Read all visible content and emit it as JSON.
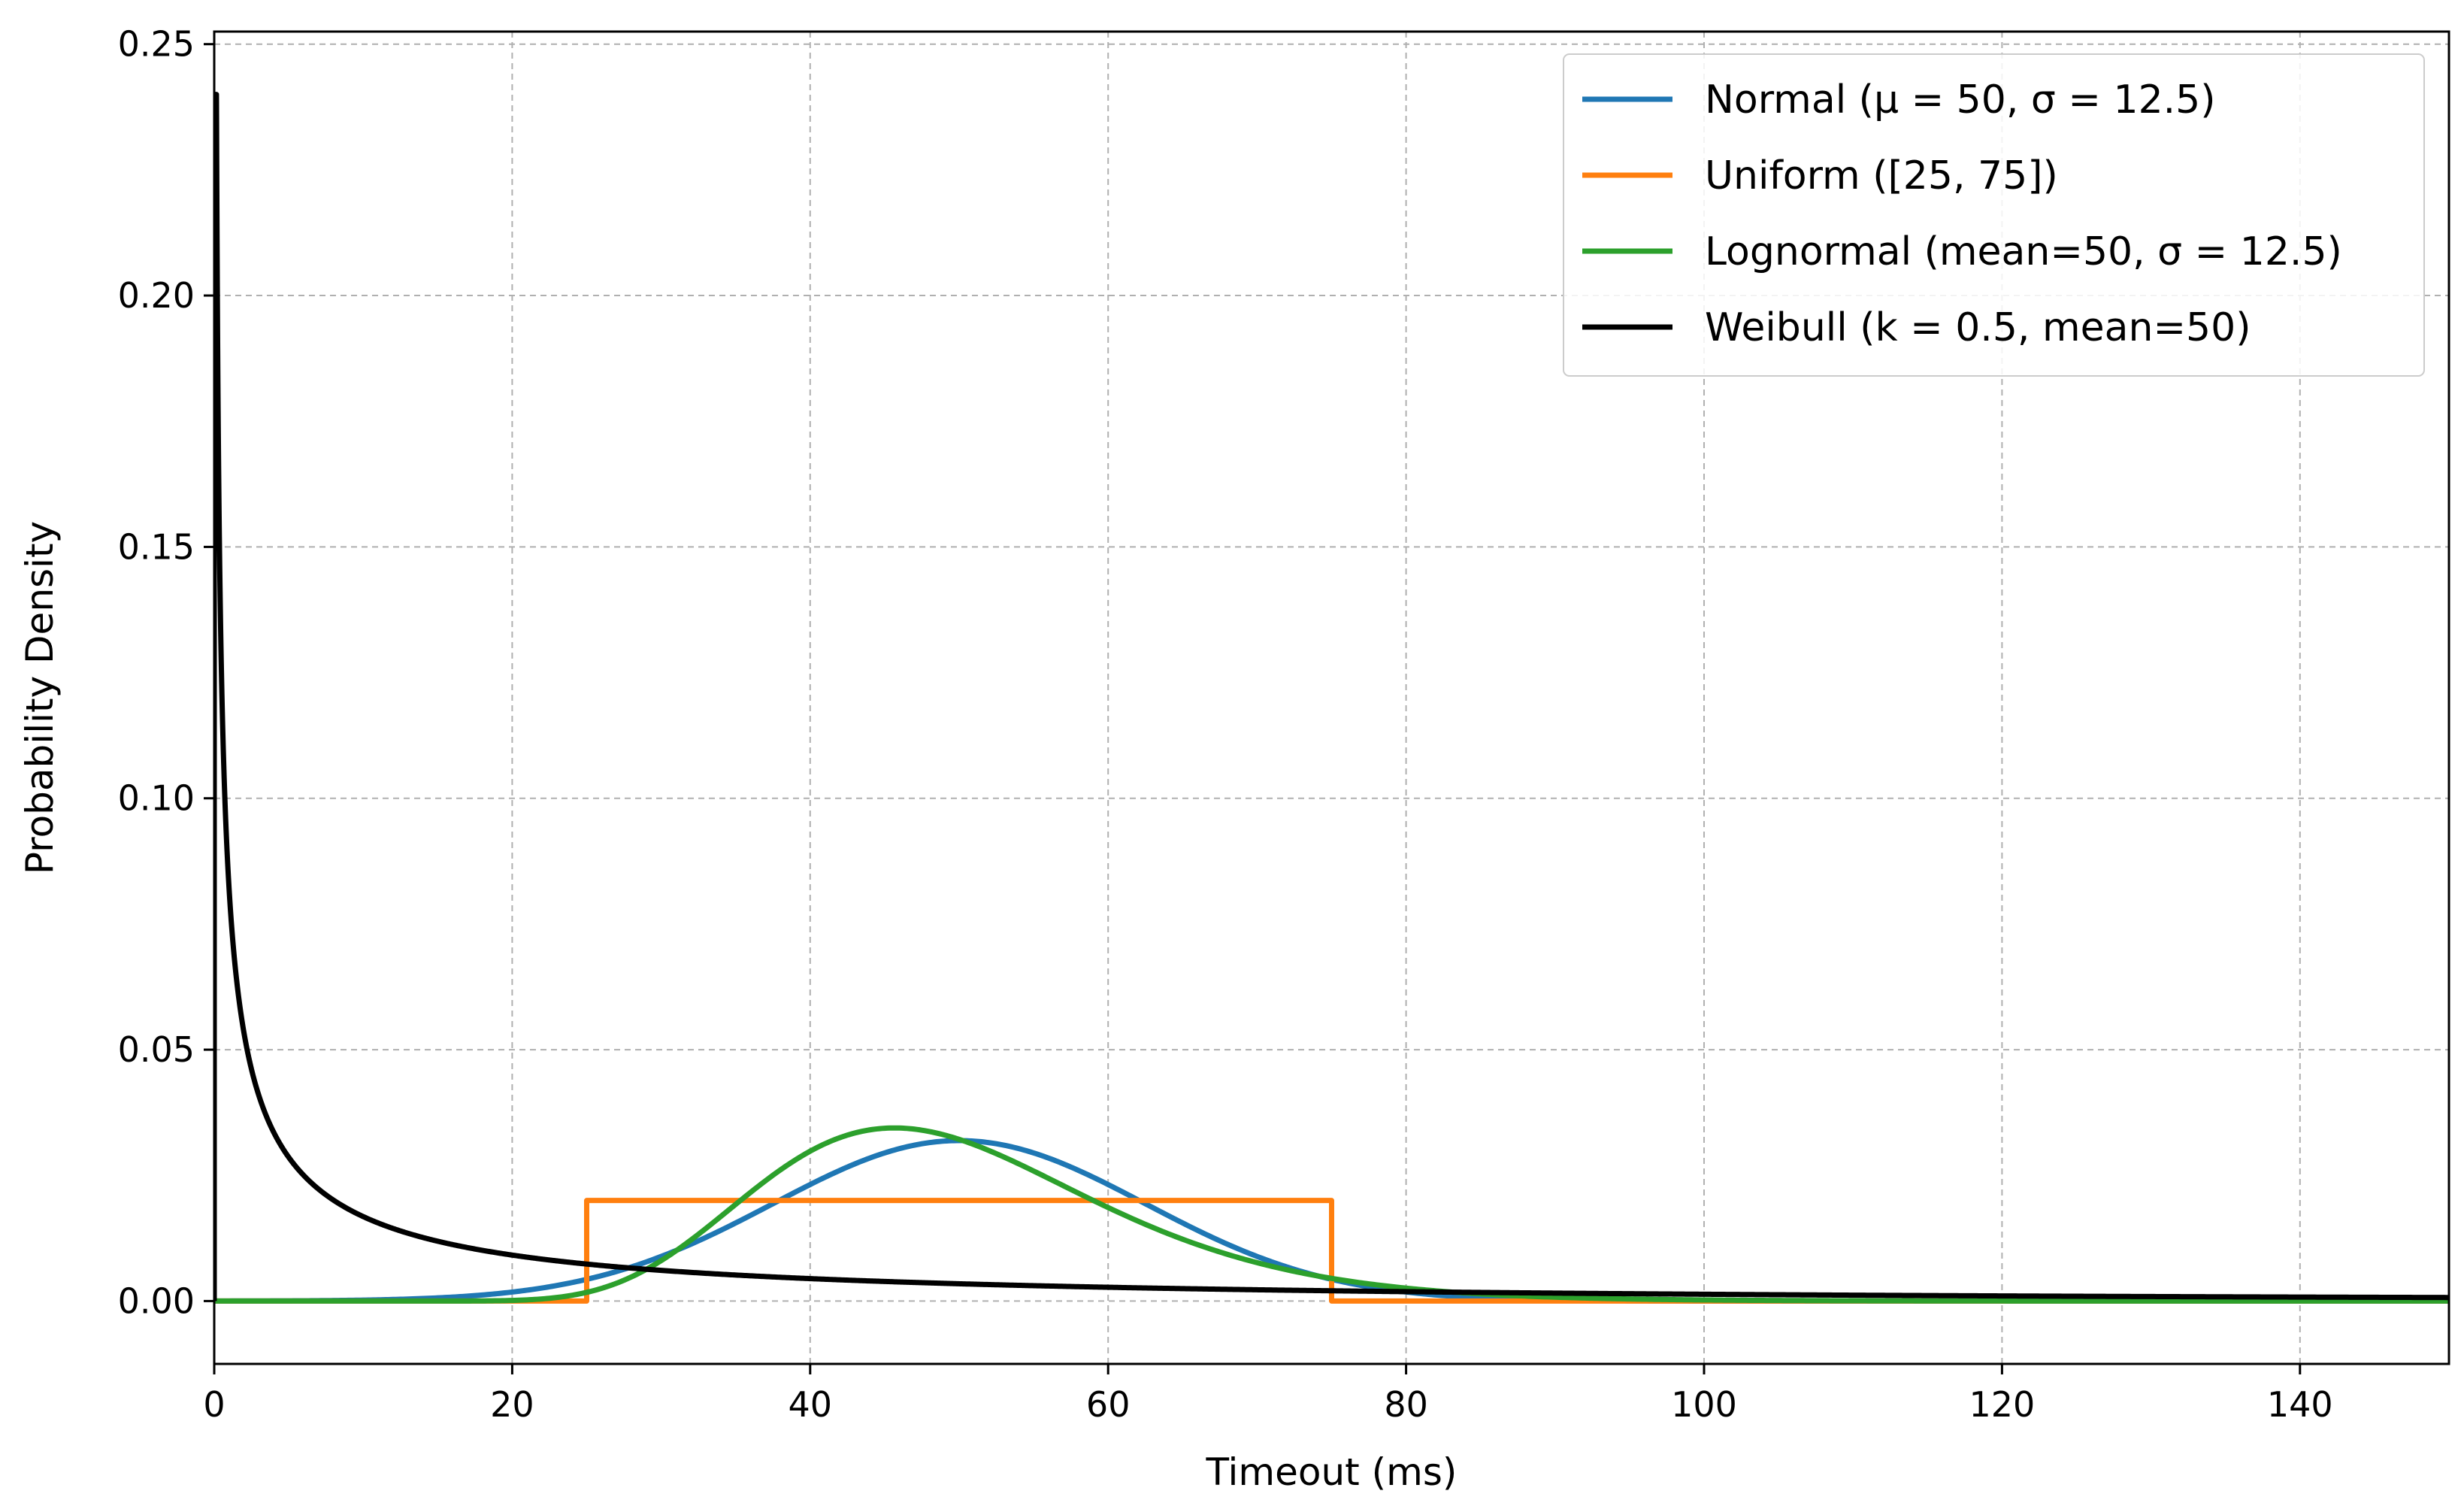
{
  "chart_data": {
    "type": "line",
    "title": "",
    "xlabel": "Timeout (ms)",
    "ylabel": "Probability Density",
    "xlim": [
      0,
      150
    ],
    "ylim": [
      -0.0125,
      0.2525
    ],
    "x_ticks": [
      "0",
      "20",
      "40",
      "60",
      "80",
      "100",
      "120",
      "140"
    ],
    "y_ticks": [
      "0.00",
      "0.05",
      "0.10",
      "0.15",
      "0.20",
      "0.25"
    ],
    "grid": true,
    "legend_position": "top-right",
    "series": [
      {
        "name": "Normal (μ = 50, σ = 12.5)",
        "color": "#1f77b4",
        "dist": "normal",
        "mu": 50,
        "sigma": 12.5
      },
      {
        "name": "Uniform ([25, 75])",
        "color": "#ff7f0e",
        "dist": "uniform",
        "a": 25,
        "b": 75
      },
      {
        "name": "Lognormal (mean=50, σ = 12.5)",
        "color": "#2ca02c",
        "dist": "lognormal",
        "mean": 50,
        "sd": 12.5
      },
      {
        "name": "Weibull (k = 0.5, mean=50)",
        "color": "#000000",
        "dist": "weibull",
        "k": 0.5,
        "mean": 50,
        "peak_value": 0.24
      }
    ]
  }
}
